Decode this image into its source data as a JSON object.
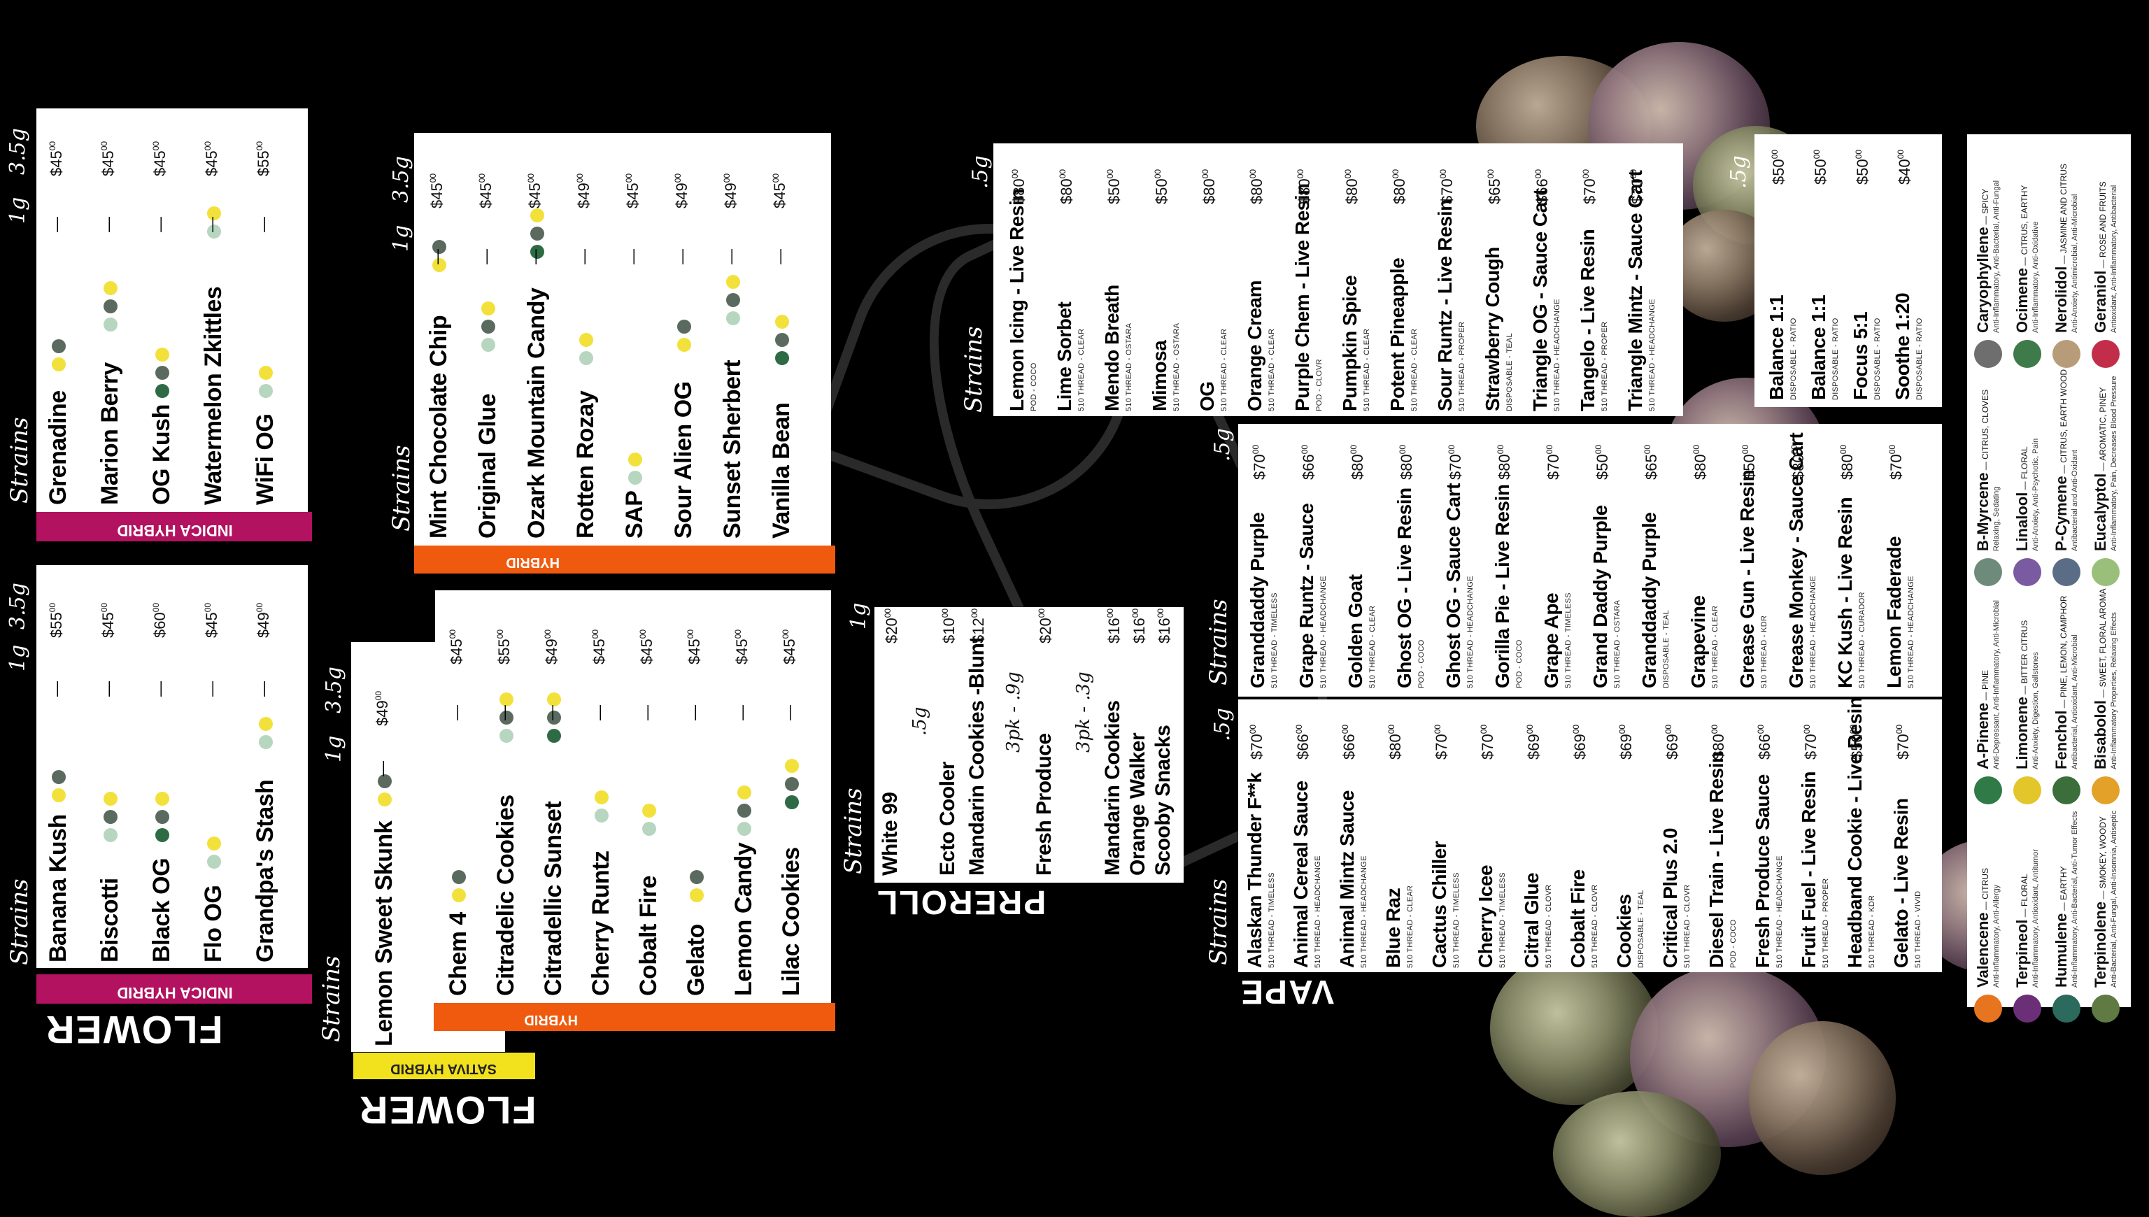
{
  "flower_left": {
    "big_label": "FLOWER",
    "strains_header": "Strains",
    "col_1g": "1g",
    "col_35g": "3.5g",
    "indica_card": {
      "band": "INDICA HYBRID",
      "items": [
        {
          "name": "Grenadine",
          "p1": "—",
          "p2": "$45",
          "p2c": "00"
        },
        {
          "name": "Marion Berry",
          "p1": "—",
          "p2": "$45",
          "p2c": "00"
        },
        {
          "name": "OG Kush",
          "p1": "—",
          "p2": "$45",
          "p2c": "00"
        },
        {
          "name": "Watermelon Zkittles",
          "p1": "—",
          "p2": "$45",
          "p2c": "00"
        },
        {
          "name": "WiFi OG",
          "p1": "—",
          "p2": "$55",
          "p2c": "00"
        }
      ]
    },
    "indica2_card": {
      "band": "INDICA HYBRID",
      "items": [
        {
          "name": "Banana Kush",
          "p1": "—",
          "p2": "$55",
          "p2c": "00"
        },
        {
          "name": "Biscotti",
          "p1": "—",
          "p2": "$45",
          "p2c": "00"
        },
        {
          "name": "Black OG",
          "p1": "—",
          "p2": "$60",
          "p2c": "00"
        },
        {
          "name": "Flo OG",
          "p1": "—",
          "p2": "$45",
          "p2c": "00"
        },
        {
          "name": "Grandpa's Stash",
          "p1": "—",
          "p2": "$49",
          "p2c": "00"
        }
      ]
    }
  },
  "flower_mid": {
    "big_label": "FLOWER",
    "strains_header": "Strains",
    "col_1g": "1g",
    "col_35g": "3.5g",
    "sativa_card": {
      "band": "SATIVA HYBRID",
      "items": [
        {
          "name": "Lemon Sweet Skunk",
          "p1": "—",
          "p2": "$49",
          "p2c": "00"
        }
      ]
    },
    "hybrid_top": {
      "band": "HYBRID",
      "items": [
        {
          "name": "Mint Chocolate Chip",
          "p1": "—",
          "p2": "$45",
          "p2c": "00"
        },
        {
          "name": "Original Glue",
          "p1": "—",
          "p2": "$45",
          "p2c": "00"
        },
        {
          "name": "Ozark Mountain Candy",
          "p1": "—",
          "p2": "$45",
          "p2c": "00"
        },
        {
          "name": "Rotten Rozay",
          "p1": "—",
          "p2": "$49",
          "p2c": "00"
        },
        {
          "name": "SAP",
          "p1": "—",
          "p2": "$45",
          "p2c": "00"
        },
        {
          "name": "Sour Alien OG",
          "p1": "—",
          "p2": "$49",
          "p2c": "00"
        },
        {
          "name": "Sunset Sherbert",
          "p1": "—",
          "p2": "$49",
          "p2c": "00"
        },
        {
          "name": "Vanilla Bean",
          "p1": "—",
          "p2": "$45",
          "p2c": "00"
        }
      ]
    },
    "hybrid_bottom": {
      "band": "HYBRID",
      "items": [
        {
          "name": "Chem 4",
          "p1": "—",
          "p2": "$45",
          "p2c": "00"
        },
        {
          "name": "Citradelic Cookies",
          "p1": "—",
          "p2": "$55",
          "p2c": "00"
        },
        {
          "name": "Citradellic Sunset",
          "p1": "—",
          "p2": "$49",
          "p2c": "00"
        },
        {
          "name": "Cherry Runtz",
          "p1": "—",
          "p2": "$45",
          "p2c": "00"
        },
        {
          "name": "Cobalt Fire",
          "p1": "—",
          "p2": "$45",
          "p2c": "00"
        },
        {
          "name": "Gelato",
          "p1": "—",
          "p2": "$45",
          "p2c": "00"
        },
        {
          "name": "Lemon Candy",
          "p1": "—",
          "p2": "$45",
          "p2c": "00"
        },
        {
          "name": "Lilac Cookies",
          "p1": "—",
          "p2": "$45",
          "p2c": "00"
        }
      ]
    }
  },
  "preroll": {
    "big_label": "PREROLL",
    "strains_header": "Strains",
    "col_1g": "1g",
    "rows": [
      {
        "name": "White 99",
        "price": "$20",
        "c": "00"
      },
      {
        "name": ".5g",
        "price": "",
        "c": ""
      },
      {
        "name": "Ecto Cooler",
        "price": "$10",
        "c": "00"
      },
      {
        "name": "Mandarin Cookies -Blunt",
        "price": "$12",
        "c": "00"
      },
      {
        "name": "3pk - .9g",
        "price": "",
        "c": ""
      },
      {
        "name": "Fresh Produce",
        "price": "$20",
        "c": "00"
      },
      {
        "name": "3pk - .3g",
        "price": "",
        "c": ""
      },
      {
        "name": "Mandarin Cookies",
        "price": "$16",
        "c": "00"
      },
      {
        "name": "Orange Walker",
        "price": "$16",
        "c": "00"
      },
      {
        "name": "Scooby Snacks",
        "price": "$16",
        "c": "00"
      }
    ]
  },
  "vape": {
    "big_label": "VAPE",
    "strains_header": "Strains",
    "col_5g": ".5g",
    "top_right": [
      {
        "name": "Lemon Icing - Live Resin",
        "sub": "POD - COCO",
        "price": "$80"
      },
      {
        "name": "Lime Sorbet",
        "sub": "510 THREAD - CLEAR",
        "price": "$80"
      },
      {
        "name": "Mendo Breath",
        "sub": "510 THREAD - OSTARA",
        "price": "$50"
      },
      {
        "name": "Mimosa",
        "sub": "510 THREAD - OSTARA",
        "price": "$50"
      },
      {
        "name": "OG",
        "sub": "510 THREAD - CLEAR",
        "price": "$80"
      },
      {
        "name": "Orange Cream",
        "sub": "510 THREAD - CLEAR",
        "price": "$80"
      },
      {
        "name": "Purple Chem - Live Resin",
        "sub": "POD - CLOVR",
        "price": "$80"
      },
      {
        "name": "Pumpkin Spice",
        "sub": "510 THREAD - CLEAR",
        "price": "$80"
      },
      {
        "name": "Potent Pineapple",
        "sub": "510 THREAD - CLEAR",
        "price": "$80"
      },
      {
        "name": "Sour Runtz - Live Resin",
        "sub": "510 THREAD - PROPER",
        "price": "$70"
      },
      {
        "name": "Strawberry Cough",
        "sub": "DISPOSABLE - TEAL",
        "price": "$65"
      },
      {
        "name": "Triangle OG - Sauce Cart",
        "sub": "510 THREAD - HEADCHANGE",
        "price": "$66"
      },
      {
        "name": "Tangelo - Live Resin",
        "sub": "510 THREAD - PROPER",
        "price": "$70"
      },
      {
        "name": "Triangle Mintz - Sauce Cart",
        "sub": "510 THREAD - HEADCHANGE",
        "price": "$70"
      }
    ],
    "mid": [
      {
        "name": "Granddaddy Purple",
        "sub": "510 THREAD - TIMELESS",
        "price": "$70"
      },
      {
        "name": "Grape Runtz - Sauce",
        "sub": "510 THREAD - HEADCHANGE",
        "price": "$66"
      },
      {
        "name": "Golden Goat",
        "sub": "510 THREAD - CLEAR",
        "price": "$80"
      },
      {
        "name": "Ghost OG - Live Resin",
        "sub": "POD - COCO",
        "price": "$80"
      },
      {
        "name": "Ghost OG - Sauce Cart",
        "sub": "510 THREAD - HEADCHANGE",
        "price": "$70"
      },
      {
        "name": "Gorilla Pie - Live Resin",
        "sub": "POD - COCO",
        "price": "$80"
      },
      {
        "name": "Grape Ape",
        "sub": "510 THREAD - TIMELESS",
        "price": "$70"
      },
      {
        "name": "Grand Daddy Purple",
        "sub": "510 THREAD - OSTARA",
        "price": "$50"
      },
      {
        "name": "Granddaddy Purple",
        "sub": "DISPOSABLE - TEAL",
        "price": "$65"
      },
      {
        "name": "Grapevine",
        "sub": "510 THREAD - CLEAR",
        "price": "$80"
      },
      {
        "name": "Grease Gun - Live Resin",
        "sub": "510 THREAD - KDR",
        "price": "$50"
      },
      {
        "name": "Grease Monkey - Sauce Cart",
        "sub": "510 THREAD - HEADCHANGE",
        "price": "$80"
      },
      {
        "name": "KC Kush - Live Resin",
        "sub": "510 THREAD - CURADOR",
        "price": "$80"
      },
      {
        "name": "Lemon Faderade",
        "sub": "510 THREAD - HEADCHANGE",
        "price": "$70"
      }
    ],
    "bottom": [
      {
        "name": "Alaskan Thunder F**k",
        "sub": "510 THREAD - TIMELESS",
        "price": "$70"
      },
      {
        "name": "Animal Cereal Sauce",
        "sub": "510 THREAD - HEADCHANGE",
        "price": "$66"
      },
      {
        "name": "Animal Mintz Sauce",
        "sub": "510 THREAD - HEADCHANGE",
        "price": "$66"
      },
      {
        "name": "Blue Raz",
        "sub": "510 THREAD - CLEAR",
        "price": "$80"
      },
      {
        "name": "Cactus Chiller",
        "sub": "510 THREAD - TIMELESS",
        "price": "$70"
      },
      {
        "name": "Cherry Icee",
        "sub": "510 THREAD - TIMELESS",
        "price": "$70"
      },
      {
        "name": "Citral Glue",
        "sub": "510 THREAD - CLOVR",
        "price": "$69"
      },
      {
        "name": "Cobalt Fire",
        "sub": "510 THREAD - CLOVR",
        "price": "$69"
      },
      {
        "name": "Cookies",
        "sub": "DISPOSABLE - TEAL",
        "price": "$69"
      },
      {
        "name": "Critical Plus 2.0",
        "sub": "510 THREAD - CLOVR",
        "price": "$69"
      },
      {
        "name": "Diesel Train - Live Resin",
        "sub": "POD - COCO",
        "price": "$80"
      },
      {
        "name": "Fresh Produce Sauce",
        "sub": "510 THREAD - HEADCHANGE",
        "price": "$66"
      },
      {
        "name": "Fruit Fuel - Live Resin",
        "sub": "510 THREAD - PROPER",
        "price": "$70"
      },
      {
        "name": "Headband Cookie - Live Resin",
        "sub": "510 THREAD - KDR",
        "price": "$50"
      },
      {
        "name": "Gelato - Live Resin",
        "sub": "510 THREAD - VIVID",
        "price": "$70"
      }
    ],
    "ratio": [
      {
        "name": "Balance 1:1",
        "sub": "DISPOSABLE - RATIO",
        "price": "$50"
      },
      {
        "name": "Balance 1:1",
        "sub": "DISPOSABLE - RATIO",
        "price": "$50"
      },
      {
        "name": "Focus 5:1",
        "sub": "DISPOSABLE - RATIO",
        "price": "$50"
      },
      {
        "name": "Soothe 1:20",
        "sub": "DISPOSABLE - RATIO",
        "price": "$40"
      }
    ]
  },
  "terpenes": [
    {
      "name": "Caryophyllene",
      "desc": "SPICY",
      "note": "Anti-Inflammatory, Anti-Bacterial, Anti-Fungal",
      "color": "#6e6e6e",
      "icon": "clove-icon"
    },
    {
      "name": "Ocimene",
      "desc": "CITRUS, EARTHY",
      "note": "Anti-Inflammatory, Anti-Oxidative",
      "color": "#3f7a4a",
      "icon": "basil-icon"
    },
    {
      "name": "Nerolidol",
      "desc": "JASMINE AND CITRUS",
      "note": "Anti-Anxiety, Antimicrobial, Anti-Microbial",
      "color": "#b89c7a",
      "icon": "jasmine-icon"
    },
    {
      "name": "Geraniol",
      "desc": "ROSE AND FRUITS",
      "note": "Antioxidant, Anti-Inflammatory, Antibacterial",
      "color": "#c22e4a",
      "icon": "rose-icon"
    },
    {
      "name": "B-Myrcene",
      "desc": "CITRUS, CLOVES",
      "note": "Relaxing, Sedating",
      "color": "#6d8a7b",
      "icon": "hops-icon"
    },
    {
      "name": "Linalool",
      "desc": "FLORAL",
      "note": "Anti-Anxiety, Anti-Psychotic, Pain",
      "color": "#7a5aa0",
      "icon": "lavender-icon"
    },
    {
      "name": "P-Cymene",
      "desc": "CITRUS, EARTH WOOD",
      "note": "Antibacterial and Anti-Oxidant",
      "color": "#5a6c86",
      "icon": "cumin-icon"
    },
    {
      "name": "Eucalyptol",
      "desc": "AROMATIC, PINEY",
      "note": "Anti-Inflammatory, Pain, Decreases Blood Pressure",
      "color": "#9abf7a",
      "icon": "eucalyptus-icon"
    },
    {
      "name": "A-Pinene",
      "desc": "PINE",
      "note": "Anti-Depressant, Anti-Inflammatory, Anti-Microbial",
      "color": "#2f7a46",
      "icon": "pine-icon"
    },
    {
      "name": "Limonene",
      "desc": "BITTER CITRUS",
      "note": "Anti-Anxiety, Digestion, Gallstones",
      "color": "#e2c62a",
      "icon": "lemon-icon"
    },
    {
      "name": "Fenchol",
      "desc": "PINE, LEMON, CAMPHOR",
      "note": "Antibacterial, Antioxidant, Anti-Microbial",
      "color": "#3b6e3b",
      "icon": "basil2-icon"
    },
    {
      "name": "Bisabolol",
      "desc": "SWEET, FLORAL AROMA",
      "note": "Anti-Inflammatory Properties, Relaxing Effects",
      "color": "#e3a12a",
      "icon": "chamomile-icon"
    },
    {
      "name": "Valencene",
      "desc": "CITRUS",
      "note": "Anti-Inflammatory, Anti-Allergy",
      "color": "#e7751f",
      "icon": "orange-icon"
    },
    {
      "name": "Terpineol",
      "desc": "FLORAL",
      "note": "Anti-Inflammatory, Antioxidant, Antitumor",
      "color": "#6b2f77",
      "icon": "lilac-icon"
    },
    {
      "name": "Humulene",
      "desc": "EARTHY",
      "note": "Anti-Inflammatory, Anti-Bacterial, Anti-Tumor Effects",
      "color": "#2b6a5c",
      "icon": "hops2-icon"
    },
    {
      "name": "Terpinolene",
      "desc": "SMOKEY, WOODY",
      "note": "Anti-Bacterial, Anti-Fungal, Anti-Insomnia, Antiseptic",
      "color": "#5f7a43",
      "icon": "sage-icon"
    }
  ]
}
